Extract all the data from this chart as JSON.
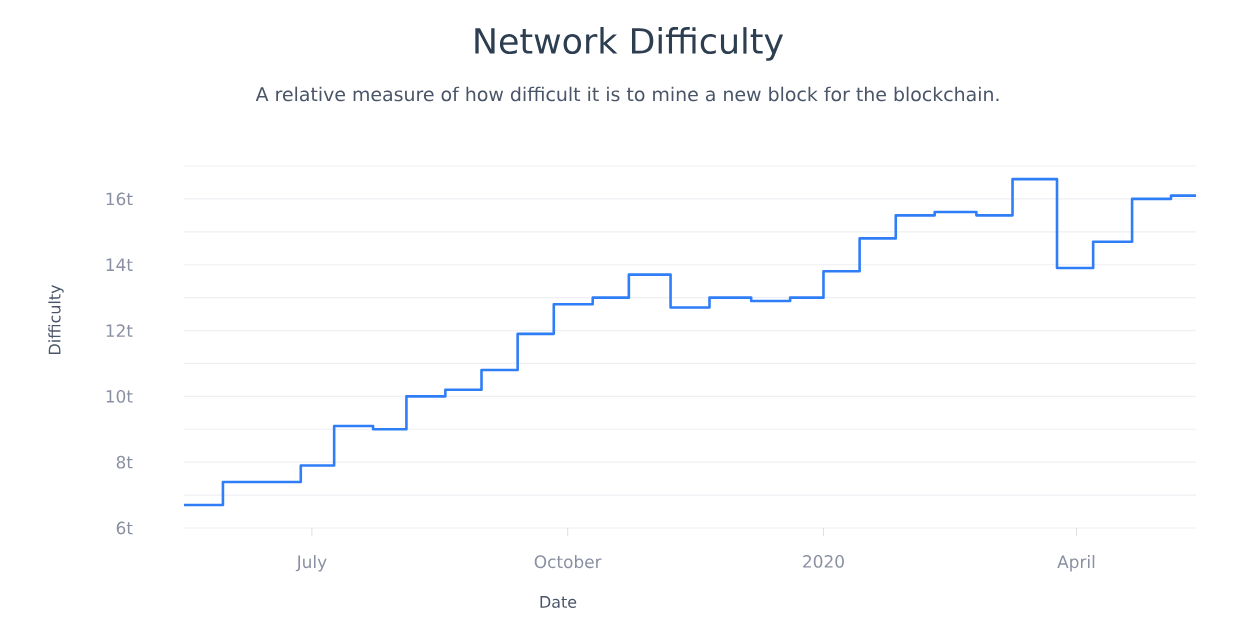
{
  "chart_data": {
    "type": "step",
    "title": "Network Difficulty",
    "subtitle": "A relative measure of how difficult it is to mine a new block for the blockchain.",
    "xlabel": "Date",
    "ylabel": "Difficulty",
    "x": [
      "2019-05-16",
      "2019-05-30",
      "2019-06-14",
      "2019-06-27",
      "2019-07-09",
      "2019-07-23",
      "2019-08-04",
      "2019-08-18",
      "2019-08-31",
      "2019-09-13",
      "2019-09-26",
      "2019-10-10",
      "2019-10-23",
      "2019-11-07",
      "2019-11-21",
      "2019-12-06",
      "2019-12-20",
      "2020-01-01",
      "2020-01-14",
      "2020-01-27",
      "2020-02-10",
      "2020-02-25",
      "2020-03-09",
      "2020-03-25",
      "2020-04-07",
      "2020-04-21",
      "2020-05-05",
      "2020-05-14"
    ],
    "series": [
      {
        "color": "#2f7ef7",
        "values": [
          6.7,
          7.4,
          7.4,
          7.9,
          9.1,
          9.0,
          10.0,
          10.2,
          10.8,
          11.9,
          12.8,
          13.0,
          13.7,
          12.7,
          13.0,
          12.9,
          13.0,
          13.8,
          14.8,
          15.5,
          15.6,
          15.5,
          16.6,
          13.9,
          14.7,
          16.0,
          16.1,
          16.1
        ]
      }
    ],
    "xlim": [
      "2019-05-16",
      "2020-05-14"
    ],
    "xticks": [
      {
        "value": "2019-07-01",
        "label": "July"
      },
      {
        "value": "2019-10-01",
        "label": "October"
      },
      {
        "value": "2020-01-01",
        "label": "2020"
      },
      {
        "value": "2020-04-01",
        "label": "April"
      }
    ],
    "ylim": [
      6,
      17
    ],
    "yticks": [
      {
        "value": 6,
        "label": "6t"
      },
      {
        "value": 7,
        "label": null
      },
      {
        "value": 8,
        "label": "8t"
      },
      {
        "value": 9,
        "label": null
      },
      {
        "value": 10,
        "label": "10t"
      },
      {
        "value": 11,
        "label": null
      },
      {
        "value": 12,
        "label": "12t"
      },
      {
        "value": 13,
        "label": null
      },
      {
        "value": 14,
        "label": "14t"
      },
      {
        "value": 15,
        "label": null
      },
      {
        "value": 16,
        "label": "16t"
      },
      {
        "value": 17,
        "label": null
      }
    ],
    "grid": "y",
    "marker": "none",
    "line_style": "solid"
  }
}
